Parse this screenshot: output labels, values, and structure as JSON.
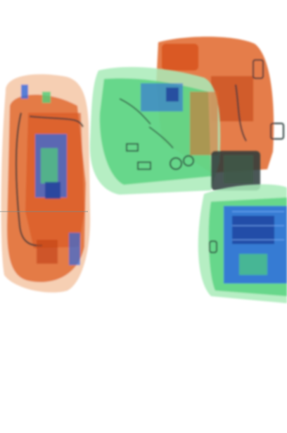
{
  "image": {
    "kind": "x-ray baggage scan",
    "palette": {
      "background": "#ffffff",
      "organic": "#e0662a",
      "organic_light": "#f0b58c",
      "inorganic": "#4fd07a",
      "inorganic_light": "#a9ebb9",
      "metal": "#2f6be0",
      "metal_dark": "#1d3f9a",
      "dense_dark": "#2c3a3a"
    },
    "objects": [
      {
        "name": "soft-bag-left",
        "material": "organic"
      },
      {
        "name": "backpack-top",
        "material": "organic"
      },
      {
        "name": "duffel-bag-center",
        "material": "inorganic"
      },
      {
        "name": "laptop-bag-right",
        "material": "inorganic"
      }
    ]
  }
}
